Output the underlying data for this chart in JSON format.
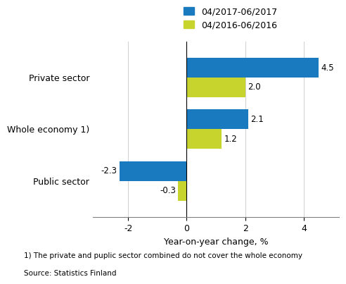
{
  "categories": [
    "Private sector",
    "Whole economy 1)",
    "Public sector"
  ],
  "series": [
    {
      "label": "04/2017-06/2017",
      "values": [
        4.5,
        2.1,
        -2.3
      ],
      "color": "#1a7abf"
    },
    {
      "label": "04/2016-06/2016",
      "values": [
        2.0,
        1.2,
        -0.3
      ],
      "color": "#c8d42e"
    }
  ],
  "xlabel": "Year-on-year change, %",
  "xlim": [
    -3.2,
    5.2
  ],
  "xticks": [
    -2,
    0,
    2,
    4
  ],
  "xticklabels": [
    "-2",
    "0",
    "2",
    "4"
  ],
  "footnote1": "1) The private and puplic sector combined do not cover the whole economy",
  "footnote2": "Source: Statistics Finland",
  "bar_height": 0.38,
  "value_fontsize": 8.5,
  "label_fontsize": 9,
  "legend_fontsize": 9,
  "axis_fontsize": 9
}
